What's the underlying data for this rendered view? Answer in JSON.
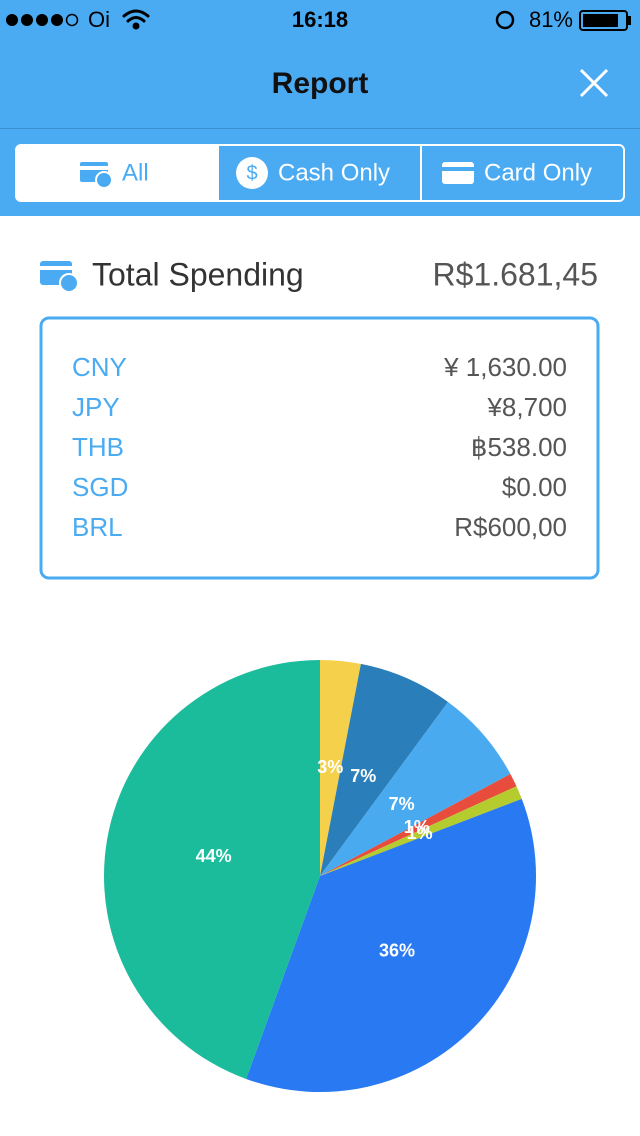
{
  "status_bar": {
    "carrier": "Oi",
    "time": "16:18",
    "battery": "81%"
  },
  "header": {
    "title": "Report"
  },
  "tabs": [
    "All",
    "Cash Only",
    "Card Only"
  ],
  "summary": {
    "label": "Total Spending",
    "amount": "R$1.681,45"
  },
  "currencies": [
    {
      "code": "CNY",
      "amount": "¥ 1,630.00"
    },
    {
      "code": "JPY",
      "amount": "¥8,700"
    },
    {
      "code": "THB",
      "amount": "฿538.00"
    },
    {
      "code": "SGD",
      "amount": "$0.00"
    },
    {
      "code": "BRL",
      "amount": "R$600,00"
    }
  ],
  "chart_data": {
    "type": "pie",
    "values": [
      3,
      7,
      7,
      1,
      1,
      36,
      44
    ],
    "value_labels": [
      "3%",
      "7%",
      "7%",
      "1%",
      "1%",
      "36%",
      "44%"
    ],
    "colors": [
      "#f5d04a",
      "#2a7fba",
      "#4aaaf0",
      "#e74c3c",
      "#b5cc2e",
      "#2979f2",
      "#1abc9c"
    ]
  }
}
